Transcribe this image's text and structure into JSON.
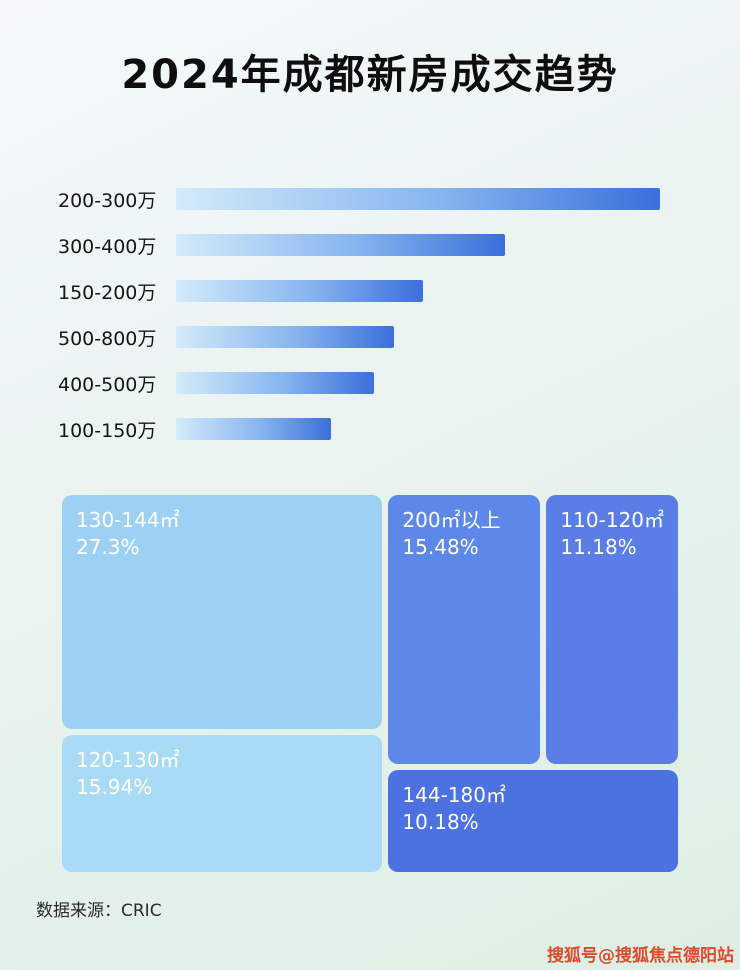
{
  "page": {
    "title": "2024年成都新房成交趋势",
    "source": "数据来源：CRIC",
    "watermark": "搜狐号@搜狐焦点德阳站",
    "background_top": "#f4f8fb",
    "background_bottom": "#dcefe2",
    "watermark_color": "#e0492c"
  },
  "chart_data": [
    {
      "type": "bar",
      "orientation": "horizontal",
      "title": "2024年成都新房成交趋势",
      "categories": [
        "200-300万",
        "300-400万",
        "150-200万",
        "500-800万",
        "400-500万",
        "100-150万"
      ],
      "values": [
        100,
        68,
        51,
        45,
        41,
        32
      ],
      "value_note": "no numeric axis shown; values are relative bar lengths in percent of longest bar",
      "bar_gradient": [
        "#d3ebfa",
        "#3b6fdb"
      ],
      "grid": "off",
      "legend": "none"
    },
    {
      "type": "treemap",
      "items": [
        {
          "label": "130-144㎡",
          "value": 27.3,
          "value_label": "27.3%",
          "color": "#9dd1f3"
        },
        {
          "label": "120-130㎡",
          "value": 15.94,
          "value_label": "15.94%",
          "color": "#a9dbf6"
        },
        {
          "label": "200㎡以上",
          "value": 15.48,
          "value_label": "15.48%",
          "color": "#5d88ea"
        },
        {
          "label": "110-120㎡",
          "value": 11.18,
          "value_label": "11.18%",
          "color": "#5a7ee6"
        },
        {
          "label": "144-180㎡",
          "value": 10.18,
          "value_label": "10.18%",
          "color": "#4c71e0"
        }
      ],
      "legend": "none"
    }
  ]
}
